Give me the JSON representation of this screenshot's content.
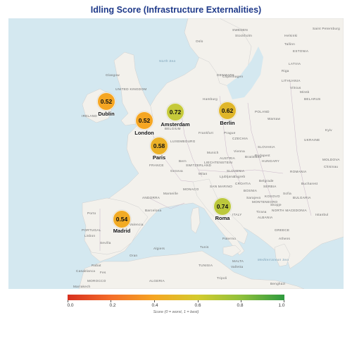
{
  "title": "Idling Score (Infrastructure Externalities)",
  "cities": [
    {
      "name": "Dublin",
      "score": "0.52",
      "color": "#f5a623"
    },
    {
      "name": "London",
      "score": "0.52",
      "color": "#f5a623"
    },
    {
      "name": "Amsterdam",
      "score": "0.72",
      "color": "#c5c93a"
    },
    {
      "name": "Berlin",
      "score": "0.62",
      "color": "#e0b62a"
    },
    {
      "name": "Paris",
      "score": "0.58",
      "color": "#ebb127"
    },
    {
      "name": "Madrid",
      "score": "0.54",
      "color": "#f2ab25"
    },
    {
      "name": "Roma",
      "score": "0.74",
      "color": "#bcc83c"
    }
  ],
  "map_labels": {
    "countries": [
      "UNITED KINGDOM",
      "IRELAND",
      "BELGIUM",
      "LUXEMBOURG",
      "FRANCE",
      "SWITZERLAND",
      "LIECHTENSTEIN",
      "MONACO",
      "ANDORRA",
      "SPAIN",
      "PORTUGAL",
      "POLAND",
      "CZECHIA",
      "SLOVAKIA",
      "AUSTRIA",
      "HUNGARY",
      "SLOVENIA",
      "CROATIA",
      "SERBIA",
      "BOSNIA",
      "MONTENEGRO",
      "ALBANIA",
      "NORTH MACEDONIA",
      "GREECE",
      "BULGARIA",
      "ROMANIA",
      "MOLDOVA",
      "UKRAINE",
      "BELARUS",
      "LITHUANIA",
      "LATVIA",
      "ESTONIA",
      "SWEDEN",
      "DENMARK",
      "ITALY",
      "SAN MARINO",
      "KOSOVO",
      "MALTA",
      "TUNISIA",
      "ALGERIA",
      "MOROCCO"
    ],
    "cities": [
      "Stockholm",
      "Oslo",
      "Helsinki",
      "Tallinn",
      "Riga",
      "Vilnius",
      "Minsk",
      "Saint Petersburg",
      "Kyiv",
      "Warsaw",
      "Prague",
      "Vienna",
      "Budapest",
      "Bratislava",
      "Belgrade",
      "Sarajevo",
      "Zagreb",
      "Ljubljana",
      "Sofia",
      "Bucharest",
      "Chisinau",
      "Skopje",
      "Tirana",
      "Athens",
      "Istanbul",
      "Copenhagen",
      "Hamburg",
      "Frankfurt",
      "Munich",
      "Geneva",
      "Bern",
      "Milan",
      "Marseille",
      "Barcelona",
      "Valencia",
      "Lisbon",
      "Porto",
      "Sevilla",
      "Glasgow",
      "Palermo",
      "Valletta",
      "Tunis",
      "Algiers",
      "Oran",
      "Rabat",
      "Casablanca",
      "Marrakech",
      "Fes",
      "Tripoli",
      "Benghazi"
    ],
    "seas": [
      "North Sea",
      "Mediterranean Sea"
    ]
  },
  "colorbar": {
    "ticks": [
      "0.0",
      "0.2",
      "0.4",
      "0.6",
      "0.8",
      "1.0"
    ],
    "caption": "Score (0 = worst, 1 = best)",
    "colors": [
      "#d7301f",
      "#f46d2a",
      "#f5a623",
      "#d4cb2e",
      "#8fc03c",
      "#2e9a3f"
    ]
  }
}
